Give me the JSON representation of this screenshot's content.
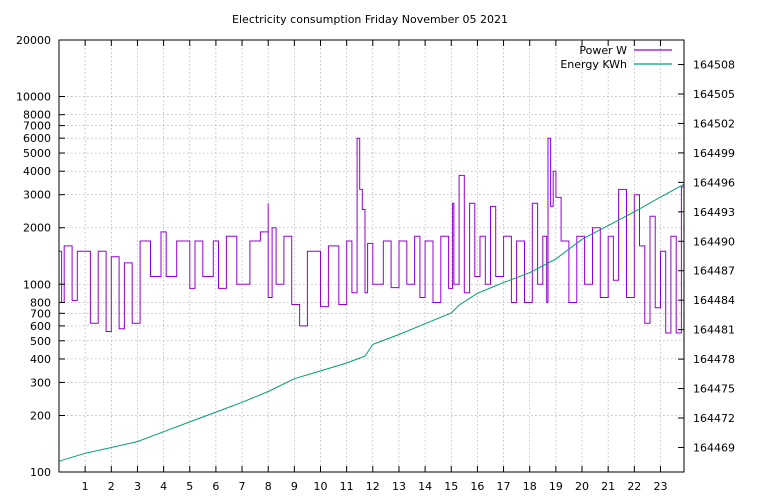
{
  "chart_data": {
    "type": "line",
    "title": "Electricity consumption Friday November 05 2021",
    "x_ticks": [
      "1",
      "2",
      "3",
      "4",
      "5",
      "6",
      "7",
      "8",
      "9",
      "10",
      "11",
      "12",
      "13",
      "14",
      "15",
      "16",
      "17",
      "18",
      "19",
      "20",
      "21",
      "22",
      "23"
    ],
    "xlim": [
      0,
      23.9
    ],
    "y_left": {
      "scale": "log",
      "lim": [
        100,
        20000
      ],
      "ticks": [
        100,
        200,
        300,
        400,
        500,
        600,
        700,
        800,
        1000,
        2000,
        3000,
        4000,
        5000,
        6000,
        7000,
        8000,
        10000,
        20000
      ],
      "tick_labels": [
        "100",
        "200",
        "300",
        "400",
        "500",
        "600",
        "700",
        "800",
        "1000",
        "2000",
        "3000",
        "4000",
        "5000",
        "6000",
        "7000",
        "8000",
        "10000",
        "20000"
      ]
    },
    "y_right": {
      "scale": "linear",
      "lim": [
        164466.5,
        164510.5
      ],
      "ticks": [
        164469,
        164472,
        164475,
        164478,
        164481,
        164484,
        164487,
        164490,
        164493,
        164496,
        164499,
        164502,
        164505,
        164508
      ],
      "tick_labels": [
        "164469",
        "164472",
        "164475",
        "164478",
        "164481",
        "164484",
        "164487",
        "164490",
        "164493",
        "164496",
        "164499",
        "164502",
        "164505",
        "164508"
      ]
    },
    "legend_position": "top-right",
    "grid": true,
    "series": [
      {
        "name": "Power W",
        "color": "#9400d3",
        "axis": "left",
        "x": [
          0.0,
          0.1,
          0.2,
          0.5,
          0.7,
          1.2,
          1.5,
          1.8,
          2.0,
          2.3,
          2.5,
          2.8,
          3.1,
          3.5,
          3.9,
          4.1,
          4.5,
          5.0,
          5.2,
          5.5,
          5.9,
          6.1,
          6.4,
          6.8,
          7.3,
          7.7,
          8.0,
          8.0,
          8.15,
          8.3,
          8.6,
          8.9,
          9.2,
          9.5,
          10.0,
          10.3,
          10.7,
          11.0,
          11.2,
          11.4,
          11.5,
          11.6,
          11.7,
          11.8,
          12.0,
          12.4,
          12.7,
          13.0,
          13.3,
          13.6,
          13.8,
          14.0,
          14.3,
          14.6,
          14.9,
          15.05,
          15.1,
          15.3,
          15.5,
          15.7,
          15.9,
          16.1,
          16.3,
          16.5,
          16.7,
          17.0,
          17.3,
          17.5,
          17.8,
          18.1,
          18.3,
          18.5,
          18.65,
          18.7,
          18.8,
          18.9,
          19.0,
          19.2,
          19.5,
          19.8,
          20.1,
          20.4,
          20.7,
          21.0,
          21.2,
          21.4,
          21.7,
          22.0,
          22.2,
          22.4,
          22.6,
          22.8,
          23.0,
          23.2,
          23.4,
          23.6,
          23.8,
          23.9
        ],
        "y": [
          1500,
          800,
          1600,
          820,
          1500,
          620,
          1500,
          560,
          1400,
          580,
          1300,
          620,
          1700,
          1100,
          1900,
          1100,
          1700,
          950,
          1700,
          1100,
          1700,
          950,
          1800,
          1000,
          1700,
          1900,
          2700,
          850,
          2000,
          1000,
          1800,
          780,
          600,
          1500,
          760,
          1600,
          780,
          1700,
          900,
          6000,
          3200,
          2500,
          900,
          1650,
          1000,
          1700,
          960,
          1700,
          1000,
          1800,
          850,
          1700,
          800,
          1800,
          950,
          2700,
          1000,
          3800,
          900,
          2700,
          1100,
          1800,
          1000,
          2600,
          1100,
          1800,
          800,
          1700,
          800,
          2700,
          1000,
          1800,
          800,
          6000,
          2600,
          4000,
          2900,
          1700,
          800,
          1800,
          1000,
          2000,
          850,
          1800,
          1050,
          3200,
          850,
          3000,
          1600,
          620,
          2300,
          750,
          1500,
          550,
          1800,
          550,
          3300,
          1200
        ],
        "line_type": "step"
      },
      {
        "name": "Energy KWh",
        "color": "#009e73",
        "axis": "right",
        "x": [
          0.0,
          1.0,
          2.0,
          3.0,
          4.0,
          5.0,
          6.0,
          7.0,
          8.0,
          9.0,
          10.0,
          11.0,
          11.7,
          12.0,
          13.0,
          14.0,
          15.0,
          15.3,
          16.0,
          17.0,
          18.0,
          19.0,
          20.0,
          21.0,
          22.0,
          23.0,
          23.9
        ],
        "y": [
          164467.6,
          164468.4,
          164469.0,
          164469.6,
          164470.6,
          164471.6,
          164472.6,
          164473.6,
          164474.7,
          164476.0,
          164476.8,
          164477.6,
          164478.3,
          164479.5,
          164480.5,
          164481.6,
          164482.7,
          164483.5,
          164484.7,
          164485.8,
          164486.8,
          164488.2,
          164490.2,
          164491.6,
          164493.0,
          164494.5,
          164495.8
        ],
        "line_type": "line"
      }
    ]
  }
}
